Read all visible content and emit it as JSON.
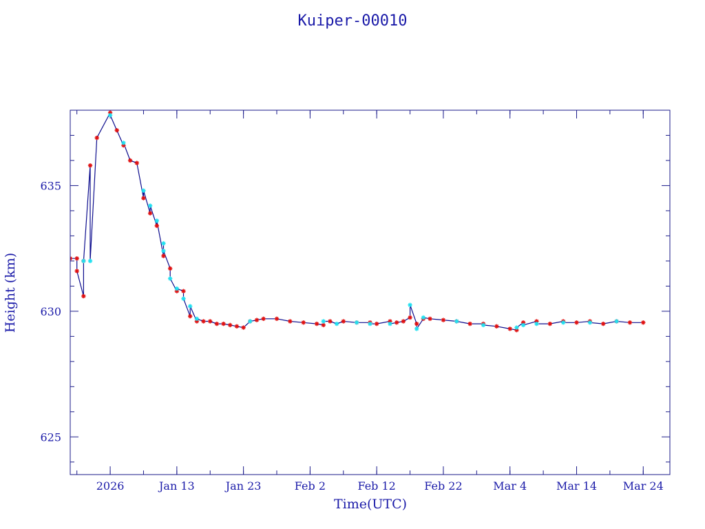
{
  "chart_data": {
    "type": "line",
    "title": "Kuiper-00010",
    "xlabel": "Time(UTC)",
    "ylabel": "Height (km)",
    "x_tick_labels": [
      "2026",
      "Jan 13",
      "Jan 23",
      "Feb  2",
      "Feb 12",
      "Feb 22",
      "Mar  4",
      "Mar 14",
      "Mar 24"
    ],
    "x_tick_dates": [
      "2026-01-03",
      "2026-01-13",
      "2026-01-23",
      "2026-02-02",
      "2026-02-12",
      "2026-02-22",
      "2026-03-04",
      "2026-03-14",
      "2026-03-24"
    ],
    "xlim": [
      "2025-12-28",
      "2026-03-28"
    ],
    "y_tick_labels": [
      "625",
      "630",
      "635"
    ],
    "y_ticks": [
      625,
      630,
      635
    ],
    "ylim": [
      623.5,
      638
    ],
    "colors": {
      "line": "#0a0a8c",
      "marker_a": "#e01010",
      "marker_b": "#20e0f0",
      "axis": "#1a1a8a",
      "text": "#1a1aa8"
    },
    "series": [
      {
        "marker_color": "red",
        "points": [
          [
            "2025-12-28",
            632.1
          ],
          [
            "2025-12-29",
            632.1
          ],
          [
            "2025-12-29",
            631.6
          ],
          [
            "2025-12-30",
            630.6
          ],
          [
            "2025-12-30",
            632.0
          ],
          [
            "2025-12-31",
            635.8
          ],
          [
            "2026-01-01",
            636.9
          ],
          [
            "2026-01-03",
            637.9
          ],
          [
            "2026-01-04",
            637.2
          ],
          [
            "2026-01-05",
            636.6
          ],
          [
            "2026-01-06",
            636.0
          ],
          [
            "2026-01-07",
            635.9
          ],
          [
            "2026-01-08",
            634.5
          ],
          [
            "2026-01-09",
            633.9
          ],
          [
            "2026-01-10",
            633.4
          ],
          [
            "2026-01-11",
            632.2
          ],
          [
            "2026-01-12",
            631.7
          ],
          [
            "2026-01-13",
            630.8
          ],
          [
            "2026-01-14",
            630.8
          ],
          [
            "2026-01-15",
            629.8
          ],
          [
            "2026-01-16",
            629.6
          ],
          [
            "2026-01-17",
            629.6
          ],
          [
            "2026-01-18",
            629.6
          ],
          [
            "2026-01-19",
            629.5
          ],
          [
            "2026-01-20",
            629.5
          ],
          [
            "2026-01-21",
            629.45
          ],
          [
            "2026-01-22",
            629.4
          ],
          [
            "2026-01-23",
            629.35
          ],
          [
            "2026-01-24",
            629.6
          ],
          [
            "2026-01-25",
            629.65
          ],
          [
            "2026-01-26",
            629.7
          ],
          [
            "2026-01-28",
            629.7
          ],
          [
            "2026-01-30",
            629.6
          ],
          [
            "2026-02-01",
            629.55
          ],
          [
            "2026-02-03",
            629.5
          ],
          [
            "2026-02-04",
            629.45
          ],
          [
            "2026-02-05",
            629.6
          ],
          [
            "2026-02-07",
            629.6
          ],
          [
            "2026-02-09",
            629.55
          ],
          [
            "2026-02-11",
            629.55
          ],
          [
            "2026-02-12",
            629.5
          ],
          [
            "2026-02-14",
            629.6
          ],
          [
            "2026-02-15",
            629.55
          ],
          [
            "2026-02-16",
            629.6
          ],
          [
            "2026-02-17",
            629.75
          ],
          [
            "2026-02-18",
            629.5
          ],
          [
            "2026-02-19",
            629.7
          ],
          [
            "2026-02-20",
            629.7
          ],
          [
            "2026-02-22",
            629.65
          ],
          [
            "2026-02-24",
            629.6
          ],
          [
            "2026-02-26",
            629.5
          ],
          [
            "2026-02-28",
            629.5
          ],
          [
            "2026-03-02",
            629.4
          ],
          [
            "2026-03-04",
            629.3
          ],
          [
            "2026-03-05",
            629.25
          ],
          [
            "2026-03-06",
            629.55
          ],
          [
            "2026-03-08",
            629.6
          ],
          [
            "2026-03-10",
            629.5
          ],
          [
            "2026-03-12",
            629.6
          ],
          [
            "2026-03-14",
            629.55
          ],
          [
            "2026-03-16",
            629.6
          ],
          [
            "2026-03-18",
            629.5
          ],
          [
            "2026-03-20",
            629.6
          ],
          [
            "2026-03-22",
            629.55
          ],
          [
            "2026-03-24",
            629.55
          ]
        ]
      },
      {
        "marker_color": "cyan",
        "points": [
          [
            "2025-12-30",
            632.0
          ],
          [
            "2025-12-31",
            632.0
          ],
          [
            "2026-01-03",
            637.8
          ],
          [
            "2026-01-05",
            636.7
          ],
          [
            "2026-01-08",
            634.8
          ],
          [
            "2026-01-09",
            634.2
          ],
          [
            "2026-01-10",
            633.6
          ],
          [
            "2026-01-11",
            632.7
          ],
          [
            "2026-01-11",
            632.4
          ],
          [
            "2026-01-12",
            631.3
          ],
          [
            "2026-01-13",
            630.9
          ],
          [
            "2026-01-14",
            630.5
          ],
          [
            "2026-01-15",
            630.2
          ],
          [
            "2026-01-16",
            629.7
          ],
          [
            "2026-01-24",
            629.6
          ],
          [
            "2026-02-04",
            629.6
          ],
          [
            "2026-02-06",
            629.5
          ],
          [
            "2026-02-09",
            629.55
          ],
          [
            "2026-02-11",
            629.5
          ],
          [
            "2026-02-14",
            629.5
          ],
          [
            "2026-02-17",
            630.25
          ],
          [
            "2026-02-18",
            629.3
          ],
          [
            "2026-02-19",
            629.75
          ],
          [
            "2026-02-24",
            629.6
          ],
          [
            "2026-02-28",
            629.45
          ],
          [
            "2026-03-05",
            629.35
          ],
          [
            "2026-03-06",
            629.45
          ],
          [
            "2026-03-08",
            629.5
          ],
          [
            "2026-03-12",
            629.55
          ],
          [
            "2026-03-16",
            629.55
          ],
          [
            "2026-03-20",
            629.6
          ]
        ]
      }
    ]
  }
}
